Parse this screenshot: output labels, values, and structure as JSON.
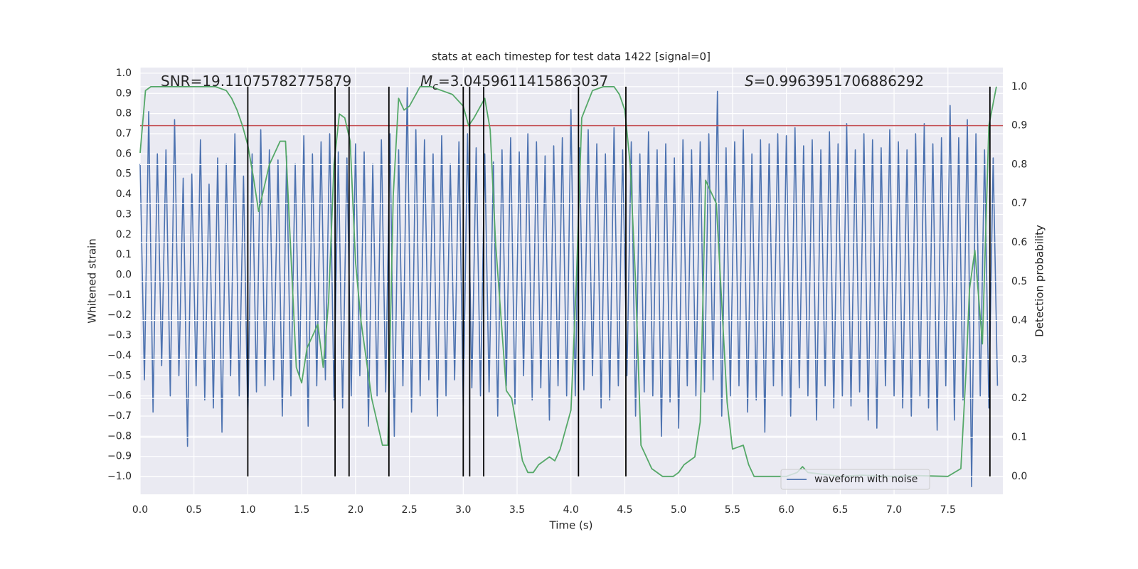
{
  "chart_data": {
    "type": "line",
    "title": "stats at each timestep for test data 1422 [signal=0]",
    "xlabel": "Time (s)",
    "ylabel": "Whitened strain",
    "y2label": "Detection probability",
    "xlim": [
      0,
      8.01
    ],
    "ylim": [
      -1.088,
      1.028
    ],
    "y2lim": [
      -0.046,
      1.049
    ],
    "xticks": [
      {
        "value": 0,
        "label": "0.0"
      },
      0.5,
      {
        "value": 1,
        "label": "1.0"
      },
      1.5,
      {
        "value": 2,
        "label": "2.0"
      },
      2.5,
      {
        "value": 3,
        "label": "3.0"
      },
      3.5,
      {
        "value": 4,
        "label": "4.0"
      },
      4.5,
      {
        "value": 5,
        "label": "5.0"
      },
      5.5,
      {
        "value": 6,
        "label": "6.0"
      },
      6.5,
      {
        "value": 7,
        "label": "7.0"
      },
      7.5
    ],
    "yticks": [
      {
        "value": -1,
        "label": "−1.0"
      },
      {
        "value": -0.9,
        "label": "−0.9"
      },
      {
        "value": -0.8,
        "label": "−0.8"
      },
      {
        "value": -0.7,
        "label": "−0.7"
      },
      {
        "value": -0.6,
        "label": "−0.6"
      },
      {
        "value": -0.5,
        "label": "−0.5"
      },
      {
        "value": -0.4,
        "label": "−0.4"
      },
      {
        "value": -0.3,
        "label": "−0.3"
      },
      {
        "value": -0.2,
        "label": "−0.2"
      },
      {
        "value": -0.1,
        "label": "−0.1"
      },
      {
        "value": 0,
        "label": "0.0"
      },
      0.1,
      0.2,
      0.3,
      0.4,
      0.5,
      0.6,
      0.7,
      0.8,
      0.9,
      {
        "value": 1,
        "label": "1.0"
      }
    ],
    "y2ticks": [
      {
        "value": 0,
        "label": "0.0"
      },
      0.1,
      0.2,
      0.3,
      0.4,
      0.5,
      0.6,
      0.7,
      0.8,
      0.9,
      {
        "value": 1,
        "label": "1.0"
      }
    ],
    "grid": true,
    "legend": "lower right",
    "series": [
      {
        "name": "waveform with noise",
        "color": "#4c72b0",
        "x": [
          0,
          0.04,
          0.08,
          0.12,
          0.16,
          0.2,
          0.24,
          0.28,
          0.32,
          0.36,
          0.4,
          0.44,
          0.48,
          0.52,
          0.56,
          0.6,
          0.64,
          0.68,
          0.72,
          0.76,
          0.8,
          0.84,
          0.88,
          0.92,
          0.96,
          1,
          1.04,
          1.08,
          1.12,
          1.16,
          1.2,
          1.24,
          1.28,
          1.32,
          1.36,
          1.4,
          1.44,
          1.48,
          1.52,
          1.56,
          1.6,
          1.64,
          1.68,
          1.72,
          1.76,
          1.8,
          1.84,
          1.88,
          1.92,
          1.96,
          2,
          2.04,
          2.08,
          2.12,
          2.16,
          2.2,
          2.24,
          2.28,
          2.32,
          2.36,
          2.4,
          2.44,
          2.48,
          2.52,
          2.56,
          2.6,
          2.64,
          2.68,
          2.72,
          2.76,
          2.8,
          2.84,
          2.88,
          2.92,
          2.96,
          3,
          3.04,
          3.08,
          3.12,
          3.16,
          3.2,
          3.24,
          3.28,
          3.32,
          3.36,
          3.4,
          3.44,
          3.48,
          3.52,
          3.56,
          3.6,
          3.64,
          3.68,
          3.72,
          3.76,
          3.8,
          3.84,
          3.88,
          3.92,
          3.96,
          4,
          4.04,
          4.08,
          4.12,
          4.16,
          4.2,
          4.24,
          4.28,
          4.32,
          4.36,
          4.4,
          4.44,
          4.48,
          4.52,
          4.56,
          4.6,
          4.64,
          4.68,
          4.72,
          4.76,
          4.8,
          4.84,
          4.88,
          4.92,
          4.96,
          5,
          5.04,
          5.08,
          5.12,
          5.16,
          5.2,
          5.24,
          5.28,
          5.32,
          5.36,
          5.4,
          5.44,
          5.48,
          5.52,
          5.56,
          5.6,
          5.64,
          5.68,
          5.72,
          5.76,
          5.8,
          5.84,
          5.88,
          5.92,
          5.96,
          6,
          6.04,
          6.08,
          6.12,
          6.16,
          6.2,
          6.24,
          6.28,
          6.32,
          6.36,
          6.4,
          6.44,
          6.48,
          6.52,
          6.56,
          6.6,
          6.64,
          6.68,
          6.72,
          6.76,
          6.8,
          6.84,
          6.88,
          6.92,
          6.96,
          7,
          7.04,
          7.08,
          7.12,
          7.16,
          7.2,
          7.24,
          7.28,
          7.32,
          7.36,
          7.4,
          7.44,
          7.48,
          7.52,
          7.56,
          7.6,
          7.64,
          7.68,
          7.72,
          7.76,
          7.8,
          7.84,
          7.88,
          7.92,
          7.96
        ],
        "values": [
          0.55,
          -0.52,
          0.81,
          -0.68,
          0.6,
          -0.45,
          0.62,
          -0.6,
          0.77,
          -0.5,
          0.48,
          -0.85,
          0.5,
          -0.55,
          0.67,
          -0.62,
          0.45,
          -0.66,
          0.58,
          -0.78,
          0.55,
          -0.5,
          0.7,
          -0.6,
          0.49,
          -0.72,
          0.6,
          -0.58,
          0.72,
          -0.55,
          0.62,
          -0.52,
          0.57,
          -0.7,
          0.59,
          -0.6,
          0.55,
          -0.5,
          0.69,
          -0.75,
          0.6,
          -0.55,
          0.66,
          -0.52,
          0.7,
          -0.62,
          0.61,
          -0.66,
          0.58,
          -0.6,
          0.65,
          -0.5,
          0.61,
          -0.75,
          0.55,
          -0.6,
          0.67,
          -0.58,
          0.7,
          -0.8,
          0.62,
          -0.55,
          0.93,
          -0.68,
          0.72,
          -0.6,
          0.67,
          -0.52,
          0.6,
          -0.7,
          0.69,
          -0.6,
          0.55,
          -0.52,
          0.66,
          -0.65,
          0.7,
          -0.56,
          0.63,
          -0.6,
          0.6,
          -0.58,
          0.56,
          -0.7,
          0.62,
          -0.55,
          0.68,
          -0.64,
          0.61,
          -0.5,
          0.7,
          -0.62,
          0.66,
          -0.56,
          0.59,
          -0.72,
          0.64,
          -0.55,
          0.68,
          -0.6,
          0.82,
          -0.6,
          0.63,
          -0.57,
          0.72,
          -0.5,
          0.65,
          -0.66,
          0.6,
          -0.62,
          0.73,
          -0.55,
          0.62,
          -0.5,
          0.66,
          -0.7,
          0.6,
          -0.58,
          0.71,
          -0.6,
          0.62,
          -0.8,
          0.65,
          -0.63,
          0.58,
          -0.76,
          0.67,
          -0.55,
          0.62,
          -0.6,
          0.66,
          -0.58,
          0.7,
          -0.52,
          0.91,
          -0.7,
          0.63,
          -0.6,
          0.66,
          -0.55,
          0.72,
          -0.68,
          0.6,
          -0.62,
          0.67,
          -0.78,
          0.65,
          -0.55,
          0.7,
          -0.6,
          0.69,
          -0.7,
          0.73,
          -0.56,
          0.64,
          -0.6,
          0.67,
          -0.72,
          0.62,
          -0.55,
          0.71,
          -0.66,
          0.65,
          -0.6,
          0.75,
          -0.65,
          0.62,
          -0.58,
          0.7,
          -0.72,
          0.67,
          -0.76,
          0.63,
          -0.55,
          0.72,
          -0.6,
          0.66,
          -0.66,
          0.62,
          -0.7,
          0.7,
          -0.6,
          0.75,
          -0.66,
          0.65,
          -0.77,
          0.68,
          -0.55,
          0.84,
          -0.72,
          0.68,
          -0.62,
          0.77,
          -1.05,
          0.7,
          -0.6,
          0.62,
          -0.66,
          0.58,
          -0.55
        ]
      },
      {
        "color": "#55a868",
        "axis": "y2",
        "x": [
          0,
          0.05,
          0.1,
          0.2,
          0.3,
          0.4,
          0.5,
          0.6,
          0.7,
          0.8,
          0.85,
          0.9,
          0.95,
          1,
          1.05,
          1.1,
          1.2,
          1.3,
          1.35,
          1.45,
          1.5,
          1.55,
          1.65,
          1.7,
          1.75,
          1.8,
          1.85,
          1.9,
          1.95,
          2,
          2.05,
          2.15,
          2.25,
          2.3,
          2.35,
          2.4,
          2.45,
          2.5,
          2.6,
          2.7,
          2.8,
          2.9,
          3,
          3.05,
          3.1,
          3.2,
          3.25,
          3.3,
          3.4,
          3.45,
          3.55,
          3.6,
          3.65,
          3.7,
          3.8,
          3.85,
          3.9,
          4,
          4.05,
          4.1,
          4.2,
          4.3,
          4.4,
          4.45,
          4.5,
          4.55,
          4.6,
          4.65,
          4.75,
          4.85,
          4.95,
          5,
          5.05,
          5.15,
          5.2,
          5.25,
          5.35,
          5.45,
          5.5,
          5.6,
          5.65,
          5.7,
          6,
          6.1,
          6.15,
          6.2,
          6.5,
          6.7,
          7,
          7.2,
          7.5,
          7.62,
          7.67,
          7.7,
          7.75,
          7.82,
          7.88,
          7.95
        ],
        "values": [
          0.83,
          0.99,
          1,
          1,
          1,
          1,
          1,
          1,
          1,
          0.99,
          0.97,
          0.94,
          0.9,
          0.85,
          0.77,
          0.68,
          0.8,
          0.86,
          0.86,
          0.28,
          0.24,
          0.33,
          0.39,
          0.28,
          0.45,
          0.8,
          0.93,
          0.92,
          0.86,
          0.55,
          0.4,
          0.2,
          0.08,
          0.08,
          0.72,
          0.97,
          0.94,
          0.95,
          1,
          1,
          0.99,
          0.98,
          0.95,
          0.9,
          0.92,
          0.97,
          0.89,
          0.6,
          0.22,
          0.2,
          0.04,
          0.01,
          0.01,
          0.03,
          0.05,
          0.04,
          0.07,
          0.17,
          0.5,
          0.92,
          0.99,
          1,
          1,
          0.98,
          0.94,
          0.8,
          0.5,
          0.08,
          0.02,
          0,
          0,
          0.01,
          0.03,
          0.05,
          0.14,
          0.76,
          0.7,
          0.19,
          0.07,
          0.08,
          0.03,
          0,
          0,
          0.01,
          0.025,
          0.01,
          0,
          0.003,
          0,
          0.002,
          0,
          0.02,
          0.28,
          0.48,
          0.58,
          0.34,
          0.9,
          1
        ]
      }
    ],
    "vlines": {
      "color": "#000000",
      "axis": "y2",
      "x": [
        1.0,
        1.81,
        1.94,
        2.31,
        3.0,
        3.06,
        3.19,
        4.07,
        4.51,
        7.89
      ],
      "ymin": 0,
      "ymax": 1
    },
    "hlines": {
      "color": "#c44e52",
      "axis": "y2",
      "values": [
        0.9
      ]
    },
    "annotations": [
      {
        "symbol": "SNR",
        "text": "=19.11075782775879"
      },
      {
        "symbol": "M",
        "subscript": "c",
        "text": "=3.0459611415863037"
      },
      {
        "symbol": "S",
        "text": "=0.9963951706886292"
      }
    ]
  }
}
